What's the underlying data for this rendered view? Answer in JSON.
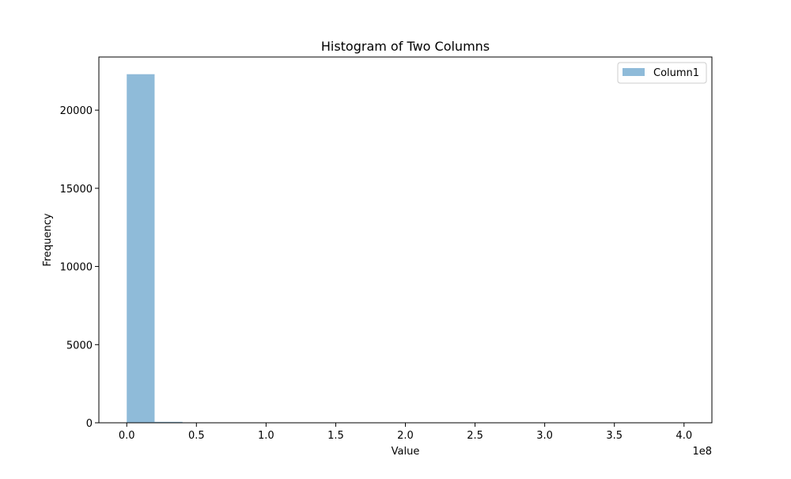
{
  "chart_data": {
    "type": "bar",
    "title": "Histogram of Two Columns",
    "xlabel": "Value",
    "ylabel": "Frequency",
    "x_offset_text": "1e8",
    "xlim": [
      -0.2,
      4.2
    ],
    "ylim": [
      0,
      23400
    ],
    "x_ticks": [
      0.0,
      0.5,
      1.0,
      1.5,
      2.0,
      2.5,
      3.0,
      3.5,
      4.0
    ],
    "x_tick_labels": [
      "0.0",
      "0.5",
      "1.0",
      "1.5",
      "2.0",
      "2.5",
      "3.0",
      "3.5",
      "4.0"
    ],
    "y_ticks": [
      0,
      5000,
      10000,
      15000,
      20000
    ],
    "y_tick_labels": [
      "0",
      "5000",
      "10000",
      "15000",
      "20000"
    ],
    "bin_edges": [
      0.0,
      0.2,
      0.4,
      0.6,
      0.8,
      1.0,
      1.2,
      1.4,
      1.6,
      1.8,
      2.0,
      2.2,
      2.4,
      2.6,
      2.8,
      3.0,
      3.2,
      3.4,
      3.6,
      3.8,
      4.0
    ],
    "series": [
      {
        "name": "Column1",
        "values": [
          22300,
          60,
          8,
          4,
          2,
          1,
          1,
          0,
          0,
          0,
          0,
          0,
          0,
          0,
          0,
          0,
          0,
          0,
          0,
          1
        ],
        "color": "#1f77b4",
        "opacity": 0.5
      }
    ],
    "grid": false,
    "legend_position": "upper right"
  }
}
